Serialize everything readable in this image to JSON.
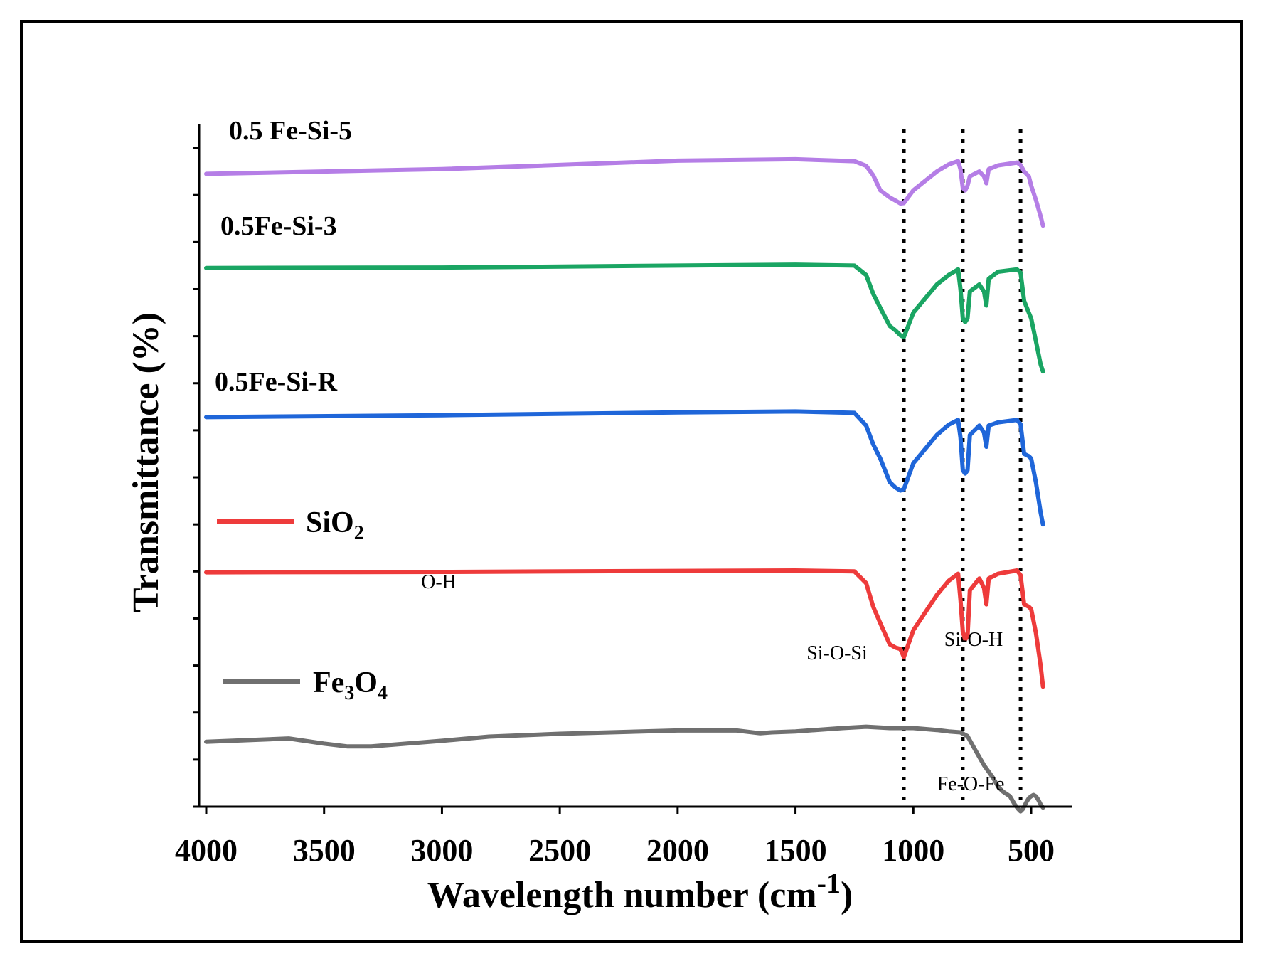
{
  "chart_data": {
    "type": "line",
    "xlabel": "Wavelength number (cm",
    "xlabel_sup": "-1",
    "xlabel_end": ")",
    "ylabel": "Transmittance (%)",
    "xlim": [
      4000,
      360
    ],
    "x_ticks": [
      "4000",
      "3500",
      "3000",
      "2500",
      "2000",
      "1500",
      "1000",
      "500"
    ],
    "x_tick_values": [
      4000,
      3500,
      3000,
      2500,
      2000,
      1500,
      1000,
      500
    ],
    "ylim": [
      0,
      14.5
    ],
    "y_ticks": [
      0,
      1,
      2,
      3,
      4,
      5,
      6,
      7,
      8,
      9,
      10,
      11,
      12,
      13,
      14
    ],
    "guide_lines": [
      1040,
      790,
      545
    ],
    "series": [
      {
        "name": "0.5 Fe-Si-5",
        "label": "0.5 Fe-Si-5",
        "color": "#b57ee6",
        "x": [
          4000,
          3000,
          2000,
          1500,
          1250,
          1200,
          1170,
          1140,
          1100,
          1075,
          1055,
          1040,
          1000,
          900,
          850,
          810,
          800,
          790,
          780,
          770,
          760,
          720,
          700,
          690,
          680,
          640,
          560,
          545,
          530,
          510,
          500,
          480,
          460,
          450
        ],
        "y": [
          13.45,
          13.55,
          13.73,
          13.76,
          13.72,
          13.62,
          13.42,
          13.1,
          12.95,
          12.88,
          12.82,
          12.83,
          13.1,
          13.5,
          13.65,
          13.72,
          13.55,
          13.15,
          13.1,
          13.2,
          13.4,
          13.5,
          13.4,
          13.25,
          13.55,
          13.63,
          13.69,
          13.64,
          13.5,
          13.4,
          13.2,
          12.9,
          12.55,
          12.35
        ]
      },
      {
        "name": "0.5Fe-Si-3",
        "label": "0.5Fe-Si-3",
        "color": "#1aa563",
        "x": [
          4000,
          3000,
          2000,
          1500,
          1250,
          1200,
          1170,
          1140,
          1100,
          1075,
          1055,
          1040,
          1000,
          900,
          850,
          810,
          800,
          790,
          780,
          770,
          760,
          720,
          700,
          690,
          680,
          640,
          560,
          545,
          530,
          510,
          500,
          480,
          460,
          450
        ],
        "y": [
          11.45,
          11.46,
          11.5,
          11.52,
          11.5,
          11.3,
          10.9,
          10.6,
          10.22,
          10.12,
          10.02,
          9.98,
          10.5,
          11.1,
          11.3,
          11.42,
          11.0,
          10.38,
          10.3,
          10.38,
          10.95,
          11.1,
          10.95,
          10.65,
          11.22,
          11.37,
          11.42,
          11.35,
          10.75,
          10.5,
          10.38,
          9.9,
          9.4,
          9.25
        ]
      },
      {
        "name": "0.5Fe-Si-R",
        "label": "0.5Fe-Si-R",
        "color": "#1f66d9",
        "x": [
          4000,
          3000,
          2000,
          1500,
          1250,
          1200,
          1170,
          1140,
          1100,
          1075,
          1055,
          1040,
          1000,
          900,
          850,
          810,
          800,
          790,
          780,
          770,
          760,
          720,
          700,
          690,
          680,
          640,
          560,
          545,
          530,
          510,
          500,
          480,
          460,
          450
        ],
        "y": [
          8.28,
          8.32,
          8.38,
          8.4,
          8.37,
          8.1,
          7.7,
          7.4,
          6.9,
          6.78,
          6.72,
          6.75,
          7.3,
          7.9,
          8.12,
          8.22,
          7.85,
          7.15,
          7.08,
          7.15,
          7.9,
          8.1,
          7.95,
          7.65,
          8.1,
          8.17,
          8.22,
          8.13,
          7.5,
          7.45,
          7.4,
          6.9,
          6.25,
          6.0
        ]
      },
      {
        "name": "SiO2",
        "label": "SiO",
        "label_sub": "2",
        "color": "#ee3b3b",
        "x": [
          4000,
          3000,
          2000,
          1500,
          1250,
          1200,
          1170,
          1140,
          1100,
          1075,
          1055,
          1040,
          1000,
          900,
          850,
          810,
          800,
          790,
          780,
          770,
          760,
          720,
          700,
          690,
          680,
          640,
          560,
          545,
          530,
          510,
          500,
          480,
          460,
          450
        ],
        "y": [
          4.98,
          4.99,
          5.01,
          5.02,
          5.0,
          4.75,
          4.25,
          3.9,
          3.45,
          3.38,
          3.35,
          3.18,
          3.75,
          4.5,
          4.8,
          4.95,
          4.4,
          3.72,
          3.55,
          3.62,
          4.6,
          4.85,
          4.65,
          4.3,
          4.85,
          4.95,
          5.02,
          4.92,
          4.3,
          4.25,
          4.2,
          3.7,
          3.0,
          2.55
        ]
      },
      {
        "name": "Fe3O4",
        "label": "Fe",
        "label_sub": "3",
        "label_mid": "O",
        "label_sub2": "4",
        "color": "#707070",
        "x": [
          4000,
          3800,
          3650,
          3500,
          3400,
          3300,
          3000,
          2800,
          2500,
          2000,
          1750,
          1650,
          1600,
          1500,
          1300,
          1200,
          1100,
          1000,
          900,
          850,
          800,
          770,
          740,
          700,
          660,
          640,
          620,
          590,
          570,
          555,
          545,
          535,
          520,
          510,
          500,
          490,
          480,
          470,
          460,
          450
        ],
        "y": [
          1.38,
          1.42,
          1.45,
          1.34,
          1.28,
          1.28,
          1.4,
          1.49,
          1.55,
          1.62,
          1.62,
          1.56,
          1.58,
          1.6,
          1.67,
          1.7,
          1.67,
          1.67,
          1.63,
          1.6,
          1.58,
          1.5,
          1.23,
          0.88,
          0.6,
          0.42,
          0.32,
          0.22,
          0.05,
          -0.05,
          -0.1,
          -0.05,
          0.1,
          0.18,
          0.22,
          0.25,
          0.22,
          0.15,
          0.05,
          -0.02
        ]
      }
    ],
    "annotations": [
      "O-H",
      "Si-O-Si",
      "Si-O-H",
      "Fe-O-Fe"
    ]
  }
}
